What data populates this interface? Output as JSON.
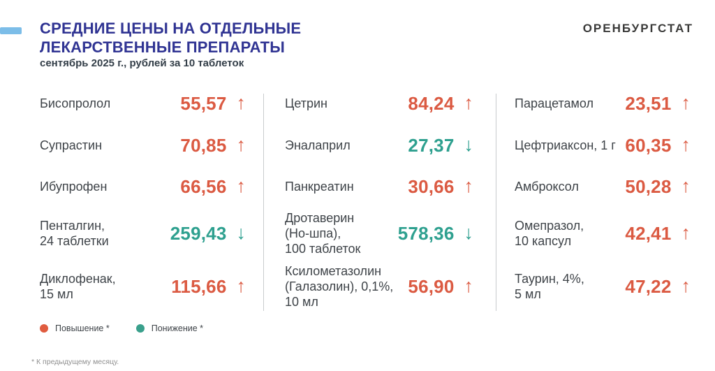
{
  "header": {
    "title": "СРЕДНИЕ ЦЕНЫ НА ОТДЕЛЬНЫЕ ЛЕКАРСТВЕННЫЕ ПРЕПАРАТЫ",
    "subtitle": "сентябрь 2025 г., рублей за 10 таблеток",
    "brand": "ОРЕНБУРГСТАТ"
  },
  "chart_data": {
    "type": "table",
    "title": "СРЕДНИЕ ЦЕНЫ НА ОТДЕЛЬНЫЕ ЛЕКАРСТВЕННЫЕ ПРЕПАРАТЫ",
    "period": "сентябрь 2025 г.",
    "unit": "рублей за 10 таблеток",
    "legend": [
      "Повышение *",
      "Понижение *"
    ],
    "columns": [
      {
        "items": [
          {
            "name": "Бисопролол",
            "price": "55,57",
            "value": 55.57,
            "trend": "up",
            "arrow": "↑"
          },
          {
            "name": "Супрастин",
            "price": "70,85",
            "value": 70.85,
            "trend": "up",
            "arrow": "↑"
          },
          {
            "name": "Ибупрофен",
            "price": "66,56",
            "value": 66.56,
            "trend": "up",
            "arrow": "↑"
          },
          {
            "name": "Пенталгин,\n24 таблетки",
            "price": "259,43",
            "value": 259.43,
            "trend": "down",
            "arrow": "↓"
          },
          {
            "name": "Диклофенак,\n15 мл",
            "price": "115,66",
            "value": 115.66,
            "trend": "up",
            "arrow": "↑"
          }
        ]
      },
      {
        "items": [
          {
            "name": "Цетрин",
            "price": "84,24",
            "value": 84.24,
            "trend": "up",
            "arrow": "↑"
          },
          {
            "name": "Эналаприл",
            "price": "27,37",
            "value": 27.37,
            "trend": "down",
            "arrow": "↓"
          },
          {
            "name": "Панкреатин",
            "price": "30,66",
            "value": 30.66,
            "trend": "up",
            "arrow": "↑"
          },
          {
            "name": "Дротаверин\n(Но-шпа),\n100 таблеток",
            "price": "578,36",
            "value": 578.36,
            "trend": "down",
            "arrow": "↓"
          },
          {
            "name": "Ксилометазолин\n(Галазолин), 0,1%,\n10 мл",
            "price": "56,90",
            "value": 56.9,
            "trend": "up",
            "arrow": "↑"
          }
        ]
      },
      {
        "items": [
          {
            "name": "Парацетамол",
            "price": "23,51",
            "value": 23.51,
            "trend": "up",
            "arrow": "↑"
          },
          {
            "name": "Цефтриаксон, 1 г",
            "price": "60,35",
            "value": 60.35,
            "trend": "up",
            "arrow": "↑"
          },
          {
            "name": "Амброксол",
            "price": "50,28",
            "value": 50.28,
            "trend": "up",
            "arrow": "↑"
          },
          {
            "name": "Омепразол,\n10 капсул",
            "price": "42,41",
            "value": 42.41,
            "trend": "up",
            "arrow": "↑"
          },
          {
            "name": "Таурин, 4%,\n5 мл",
            "price": "47,22",
            "value": 47.22,
            "trend": "up",
            "arrow": "↑"
          }
        ]
      }
    ]
  },
  "legend": {
    "items": [
      {
        "label": "Повышение *",
        "color": "#e05c3f",
        "direction": "up"
      },
      {
        "label": "Понижение *",
        "color": "#3aa08c",
        "direction": "down"
      }
    ]
  },
  "footnote": "* К предыдущему месяцу.",
  "colors": {
    "increase": "#db5a42",
    "decrease": "#2ea08f",
    "title": "#303493",
    "accent_dash": "#7cbde8",
    "divider": "#c8cbcd"
  }
}
